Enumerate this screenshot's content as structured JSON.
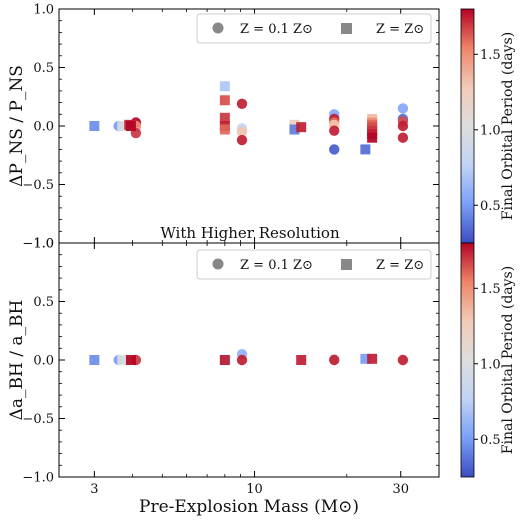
{
  "chart_data": [
    {
      "type": "scatter",
      "ylabel": "ΔP_NS / P_NS",
      "ylim": [
        -1.0,
        1.0
      ],
      "yticks": [
        "1.0",
        "0.5",
        "0.0",
        "−0.5",
        "−1.0"
      ],
      "xlim_log_mass": [
        2.3,
        40
      ],
      "legend": [
        {
          "marker": "circle",
          "label": "Z = 0.1 Z⊙"
        },
        {
          "marker": "square",
          "label": "Z = Z⊙"
        }
      ],
      "legend_placement": "top-right",
      "series": [
        {
          "marker": "circle",
          "points": [
            {
              "x": 3.6,
              "y": 0.0,
              "c": 0.5
            },
            {
              "x": 3.85,
              "y": 0.0,
              "c": 1.15
            },
            {
              "x": 4.1,
              "y": 0.03,
              "c": 1.8
            },
            {
              "x": 4.1,
              "y": 0.0,
              "c": 1.5
            },
            {
              "x": 4.1,
              "y": -0.06,
              "c": 1.7
            },
            {
              "x": 9.1,
              "y": 0.19,
              "c": 1.75
            },
            {
              "x": 9.1,
              "y": -0.02,
              "c": 0.8
            },
            {
              "x": 9.1,
              "y": -0.05,
              "c": 1.3
            },
            {
              "x": 9.1,
              "y": -0.12,
              "c": 1.75
            },
            {
              "x": 18.2,
              "y": 0.1,
              "c": 0.55
            },
            {
              "x": 18.2,
              "y": 0.06,
              "c": 1.75
            },
            {
              "x": 18.2,
              "y": 0.03,
              "c": 1.6
            },
            {
              "x": 18.2,
              "y": 0.01,
              "c": 1.3
            },
            {
              "x": 18.2,
              "y": -0.04,
              "c": 1.75
            },
            {
              "x": 18.2,
              "y": -0.2,
              "c": 0.3
            },
            {
              "x": 30.5,
              "y": 0.15,
              "c": 0.55
            },
            {
              "x": 30.5,
              "y": 0.06,
              "c": 0.35
            },
            {
              "x": 30.5,
              "y": 0.04,
              "c": 1.65
            },
            {
              "x": 30.5,
              "y": 0.0,
              "c": 1.75
            },
            {
              "x": 30.5,
              "y": -0.1,
              "c": 1.75
            }
          ]
        },
        {
          "marker": "square",
          "points": [
            {
              "x": 3.0,
              "y": 0.0,
              "c": 0.45
            },
            {
              "x": 3.7,
              "y": 0.0,
              "c": 1.0
            },
            {
              "x": 3.9,
              "y": 0.01,
              "c": 1.75
            },
            {
              "x": 3.95,
              "y": 0.0,
              "c": 1.8
            },
            {
              "x": 8.0,
              "y": 0.34,
              "c": 0.7
            },
            {
              "x": 8.0,
              "y": 0.22,
              "c": 1.65
            },
            {
              "x": 8.0,
              "y": 0.07,
              "c": 1.7
            },
            {
              "x": 8.0,
              "y": 0.0,
              "c": 1.75
            },
            {
              "x": 8.0,
              "y": -0.03,
              "c": 1.6
            },
            {
              "x": 13.5,
              "y": 0.01,
              "c": 1.25
            },
            {
              "x": 13.5,
              "y": -0.03,
              "c": 0.4
            },
            {
              "x": 14.2,
              "y": -0.01,
              "c": 1.75
            },
            {
              "x": 23.0,
              "y": -0.2,
              "c": 0.35
            },
            {
              "x": 24.2,
              "y": 0.06,
              "c": 1.35
            },
            {
              "x": 24.2,
              "y": 0.03,
              "c": 1.5
            },
            {
              "x": 24.2,
              "y": 0.01,
              "c": 1.6
            },
            {
              "x": 24.2,
              "y": -0.01,
              "c": 1.65
            },
            {
              "x": 24.2,
              "y": -0.04,
              "c": 1.7
            },
            {
              "x": 24.2,
              "y": -0.07,
              "c": 1.75
            },
            {
              "x": 24.2,
              "y": -0.1,
              "c": 1.8
            }
          ]
        }
      ]
    },
    {
      "type": "scatter",
      "annotation": "With Higher Resolution",
      "ylabel": "Δa_BH / a_BH",
      "xlabel": "Pre-Explosion Mass (M⊙)",
      "ylim": [
        -1.0,
        1.0
      ],
      "yticks": [
        "1.0",
        "0.5",
        "0.0",
        "−0.5",
        "−1.0"
      ],
      "xticks": [
        "3",
        "10",
        "30"
      ],
      "xtick_values": [
        3,
        10,
        30
      ],
      "legend": [
        {
          "marker": "circle",
          "label": "Z = 0.1 Z⊙"
        },
        {
          "marker": "square",
          "label": "Z = Z⊙"
        }
      ],
      "legend_placement": "top-right",
      "series": [
        {
          "marker": "circle",
          "points": [
            {
              "x": 3.6,
              "y": 0.0,
              "c": 0.5
            },
            {
              "x": 3.85,
              "y": 0.0,
              "c": 1.15
            },
            {
              "x": 4.1,
              "y": 0.0,
              "c": 1.7
            },
            {
              "x": 9.1,
              "y": 0.05,
              "c": 0.6
            },
            {
              "x": 9.1,
              "y": 0.0,
              "c": 1.75
            },
            {
              "x": 18.2,
              "y": 0.01,
              "c": 1.0
            },
            {
              "x": 18.2,
              "y": 0.0,
              "c": 1.75
            },
            {
              "x": 30.5,
              "y": 0.0,
              "c": 1.75
            }
          ]
        },
        {
          "marker": "square",
          "points": [
            {
              "x": 3.0,
              "y": 0.0,
              "c": 0.45
            },
            {
              "x": 3.7,
              "y": 0.0,
              "c": 1.0
            },
            {
              "x": 3.95,
              "y": 0.0,
              "c": 1.8
            },
            {
              "x": 8.0,
              "y": 0.0,
              "c": 0.5
            },
            {
              "x": 8.0,
              "y": 0.0,
              "c": 1.75
            },
            {
              "x": 14.2,
              "y": 0.0,
              "c": 1.75
            },
            {
              "x": 23.0,
              "y": 0.01,
              "c": 0.5
            },
            {
              "x": 24.2,
              "y": 0.01,
              "c": 1.75
            }
          ]
        }
      ]
    }
  ],
  "colorbar": {
    "label": "Final Orbital Period (days)",
    "range": [
      0.25,
      1.8
    ],
    "ticks": [
      "1.5",
      "1.0",
      "0.5"
    ],
    "tick_values": [
      1.5,
      1.0,
      0.5
    ],
    "colormap": "coolwarm",
    "colors": [
      "#3b4cc0",
      "#7b9ff9",
      "#c0d4f5",
      "#dddddd",
      "#f2cbb7",
      "#ee8468",
      "#b40426"
    ]
  }
}
